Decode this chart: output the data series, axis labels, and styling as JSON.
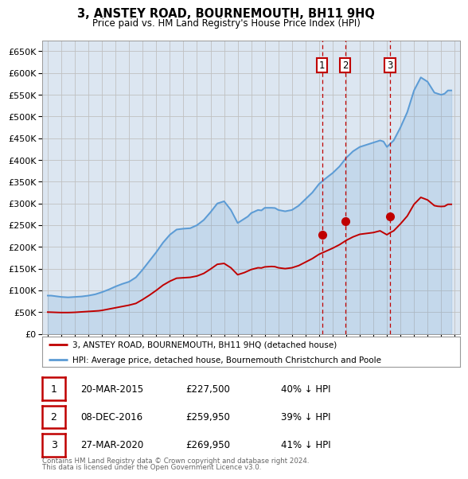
{
  "title": "3, ANSTEY ROAD, BOURNEMOUTH, BH11 9HQ",
  "subtitle": "Price paid vs. HM Land Registry's House Price Index (HPI)",
  "ylim": [
    0,
    675000
  ],
  "yticks": [
    0,
    50000,
    100000,
    150000,
    200000,
    250000,
    300000,
    350000,
    400000,
    450000,
    500000,
    550000,
    600000,
    650000
  ],
  "sales": [
    {
      "num": 1,
      "date_dec": 2015.22,
      "price": 227500
    },
    {
      "num": 2,
      "date_dec": 2016.93,
      "price": 259950
    },
    {
      "num": 3,
      "date_dec": 2020.23,
      "price": 269950
    }
  ],
  "hpi_years": [
    1995,
    1995.25,
    1995.5,
    1995.75,
    1996,
    1996.25,
    1996.5,
    1996.75,
    1997,
    1997.25,
    1997.5,
    1997.75,
    1998,
    1998.25,
    1998.5,
    1998.75,
    1999,
    1999.25,
    1999.5,
    1999.75,
    2000,
    2000.25,
    2000.5,
    2000.75,
    2001,
    2001.25,
    2001.5,
    2001.75,
    2002,
    2002.25,
    2002.5,
    2002.75,
    2003,
    2003.25,
    2003.5,
    2003.75,
    2004,
    2004.25,
    2004.5,
    2004.75,
    2005,
    2005.25,
    2005.5,
    2005.75,
    2006,
    2006.25,
    2006.5,
    2006.75,
    2007,
    2007.25,
    2007.5,
    2007.75,
    2008,
    2008.25,
    2008.5,
    2008.75,
    2009,
    2009.25,
    2009.5,
    2009.75,
    2010,
    2010.25,
    2010.5,
    2010.75,
    2011,
    2011.25,
    2011.5,
    2011.75,
    2012,
    2012.25,
    2012.5,
    2012.75,
    2013,
    2013.25,
    2013.5,
    2013.75,
    2014,
    2014.25,
    2014.5,
    2014.75,
    2015,
    2015.25,
    2015.5,
    2015.75,
    2016,
    2016.25,
    2016.5,
    2016.75,
    2017,
    2017.25,
    2017.5,
    2017.75,
    2018,
    2018.25,
    2018.5,
    2018.75,
    2019,
    2019.25,
    2019.5,
    2019.75,
    2020,
    2020.25,
    2020.5,
    2020.75,
    2021,
    2021.25,
    2021.5,
    2021.75,
    2022,
    2022.25,
    2022.5,
    2022.75,
    2023,
    2023.25,
    2023.5,
    2023.75,
    2024,
    2024.25,
    2024.5,
    2024.75
  ],
  "hpi_values": [
    88000,
    88000,
    87000,
    86000,
    85000,
    84500,
    84000,
    84500,
    85000,
    85500,
    86000,
    87000,
    88000,
    89500,
    91000,
    93500,
    96000,
    99000,
    102000,
    105500,
    109000,
    112000,
    115000,
    117500,
    120000,
    125000,
    130000,
    139000,
    148000,
    158000,
    168000,
    178000,
    188000,
    199000,
    210000,
    219000,
    228000,
    234000,
    240000,
    241000,
    242000,
    242500,
    243000,
    246500,
    250000,
    256000,
    262000,
    271000,
    280000,
    290000,
    300000,
    302500,
    305000,
    295000,
    285000,
    270000,
    255000,
    260000,
    265000,
    270000,
    278000,
    281500,
    285000,
    284000,
    290000,
    290000,
    290000,
    289500,
    285000,
    283500,
    282000,
    283500,
    285000,
    290000,
    295000,
    302500,
    310000,
    317500,
    325000,
    335000,
    345000,
    351500,
    358000,
    364000,
    370000,
    377500,
    385000,
    395000,
    405000,
    412500,
    420000,
    425000,
    430000,
    432500,
    435000,
    437500,
    440000,
    442500,
    445000,
    442500,
    430000,
    437500,
    445000,
    460000,
    475000,
    492500,
    510000,
    535000,
    560000,
    575000,
    590000,
    585000,
    580000,
    567500,
    555000,
    552500,
    550000,
    552500,
    560000,
    560000
  ],
  "sold_line_years": [
    1995,
    1995.25,
    1995.5,
    1995.75,
    1996,
    1996.25,
    1996.5,
    1996.75,
    1997,
    1997.25,
    1997.5,
    1997.75,
    1998,
    1998.25,
    1998.5,
    1998.75,
    1999,
    1999.25,
    1999.5,
    1999.75,
    2000,
    2000.25,
    2000.5,
    2000.75,
    2001,
    2001.25,
    2001.5,
    2001.75,
    2002,
    2002.25,
    2002.5,
    2002.75,
    2003,
    2003.25,
    2003.5,
    2003.75,
    2004,
    2004.25,
    2004.5,
    2004.75,
    2005,
    2005.25,
    2005.5,
    2005.75,
    2006,
    2006.25,
    2006.5,
    2006.75,
    2007,
    2007.25,
    2007.5,
    2007.75,
    2008,
    2008.25,
    2008.5,
    2008.75,
    2009,
    2009.25,
    2009.5,
    2009.75,
    2010,
    2010.25,
    2010.5,
    2010.75,
    2011,
    2011.25,
    2011.5,
    2011.75,
    2012,
    2012.25,
    2012.5,
    2012.75,
    2013,
    2013.25,
    2013.5,
    2013.75,
    2014,
    2014.25,
    2014.5,
    2014.75,
    2015,
    2015.25,
    2015.5,
    2015.75,
    2016,
    2016.25,
    2016.5,
    2016.75,
    2017,
    2017.25,
    2017.5,
    2017.75,
    2018,
    2018.25,
    2018.5,
    2018.75,
    2019,
    2019.25,
    2019.5,
    2019.75,
    2020,
    2020.25,
    2020.5,
    2020.75,
    2021,
    2021.25,
    2021.5,
    2021.75,
    2022,
    2022.25,
    2022.5,
    2022.75,
    2023,
    2023.25,
    2023.5,
    2023.75,
    2024,
    2024.25,
    2024.5,
    2024.75
  ],
  "sold_line_values": [
    50000,
    49800,
    49500,
    49200,
    49000,
    49000,
    49000,
    49200,
    49500,
    50000,
    50500,
    51000,
    51500,
    52000,
    52500,
    53000,
    54000,
    55500,
    57000,
    58500,
    60000,
    61500,
    63000,
    64500,
    66000,
    68000,
    70000,
    74500,
    79000,
    84000,
    89000,
    94500,
    100000,
    106000,
    112000,
    116500,
    121000,
    124500,
    128000,
    128500,
    129000,
    129500,
    130000,
    131500,
    133000,
    136000,
    139000,
    144000,
    149000,
    154500,
    160000,
    161000,
    162000,
    157000,
    152000,
    144000,
    136000,
    138500,
    141000,
    144500,
    148000,
    150000,
    152000,
    151500,
    154000,
    154500,
    155000,
    154500,
    152000,
    151000,
    150000,
    151000,
    152000,
    154500,
    157000,
    161000,
    165000,
    169000,
    173000,
    178000,
    183000,
    186500,
    190000,
    193500,
    197000,
    201000,
    205000,
    210000,
    215000,
    219000,
    223000,
    226000,
    229000,
    230000,
    231000,
    232000,
    233000,
    235000,
    237000,
    232500,
    228000,
    233000,
    237000,
    245000,
    253000,
    262000,
    271000,
    284500,
    298000,
    306000,
    314000,
    311000,
    308000,
    301500,
    295000,
    293500,
    293000,
    293500,
    298000,
    298000
  ],
  "table_rows": [
    {
      "num": 1,
      "date": "20-MAR-2015",
      "price": "£227,500",
      "pct": "40% ↓ HPI"
    },
    {
      "num": 2,
      "date": "08-DEC-2016",
      "price": "£259,950",
      "pct": "39% ↓ HPI"
    },
    {
      "num": 3,
      "date": "27-MAR-2020",
      "price": "£269,950",
      "pct": "41% ↓ HPI"
    }
  ],
  "legend_line1": "3, ANSTEY ROAD, BOURNEMOUTH, BH11 9HQ (detached house)",
  "legend_line2": "HPI: Average price, detached house, Bournemouth Christchurch and Poole",
  "footer1": "Contains HM Land Registry data © Crown copyright and database right 2024.",
  "footer2": "This data is licensed under the Open Government Licence v3.0.",
  "hpi_color": "#5b9bd5",
  "sold_color": "#c00000",
  "background_color": "#dce6f1",
  "plot_bg_color": "#ffffff",
  "grid_color": "#c0c0c0"
}
